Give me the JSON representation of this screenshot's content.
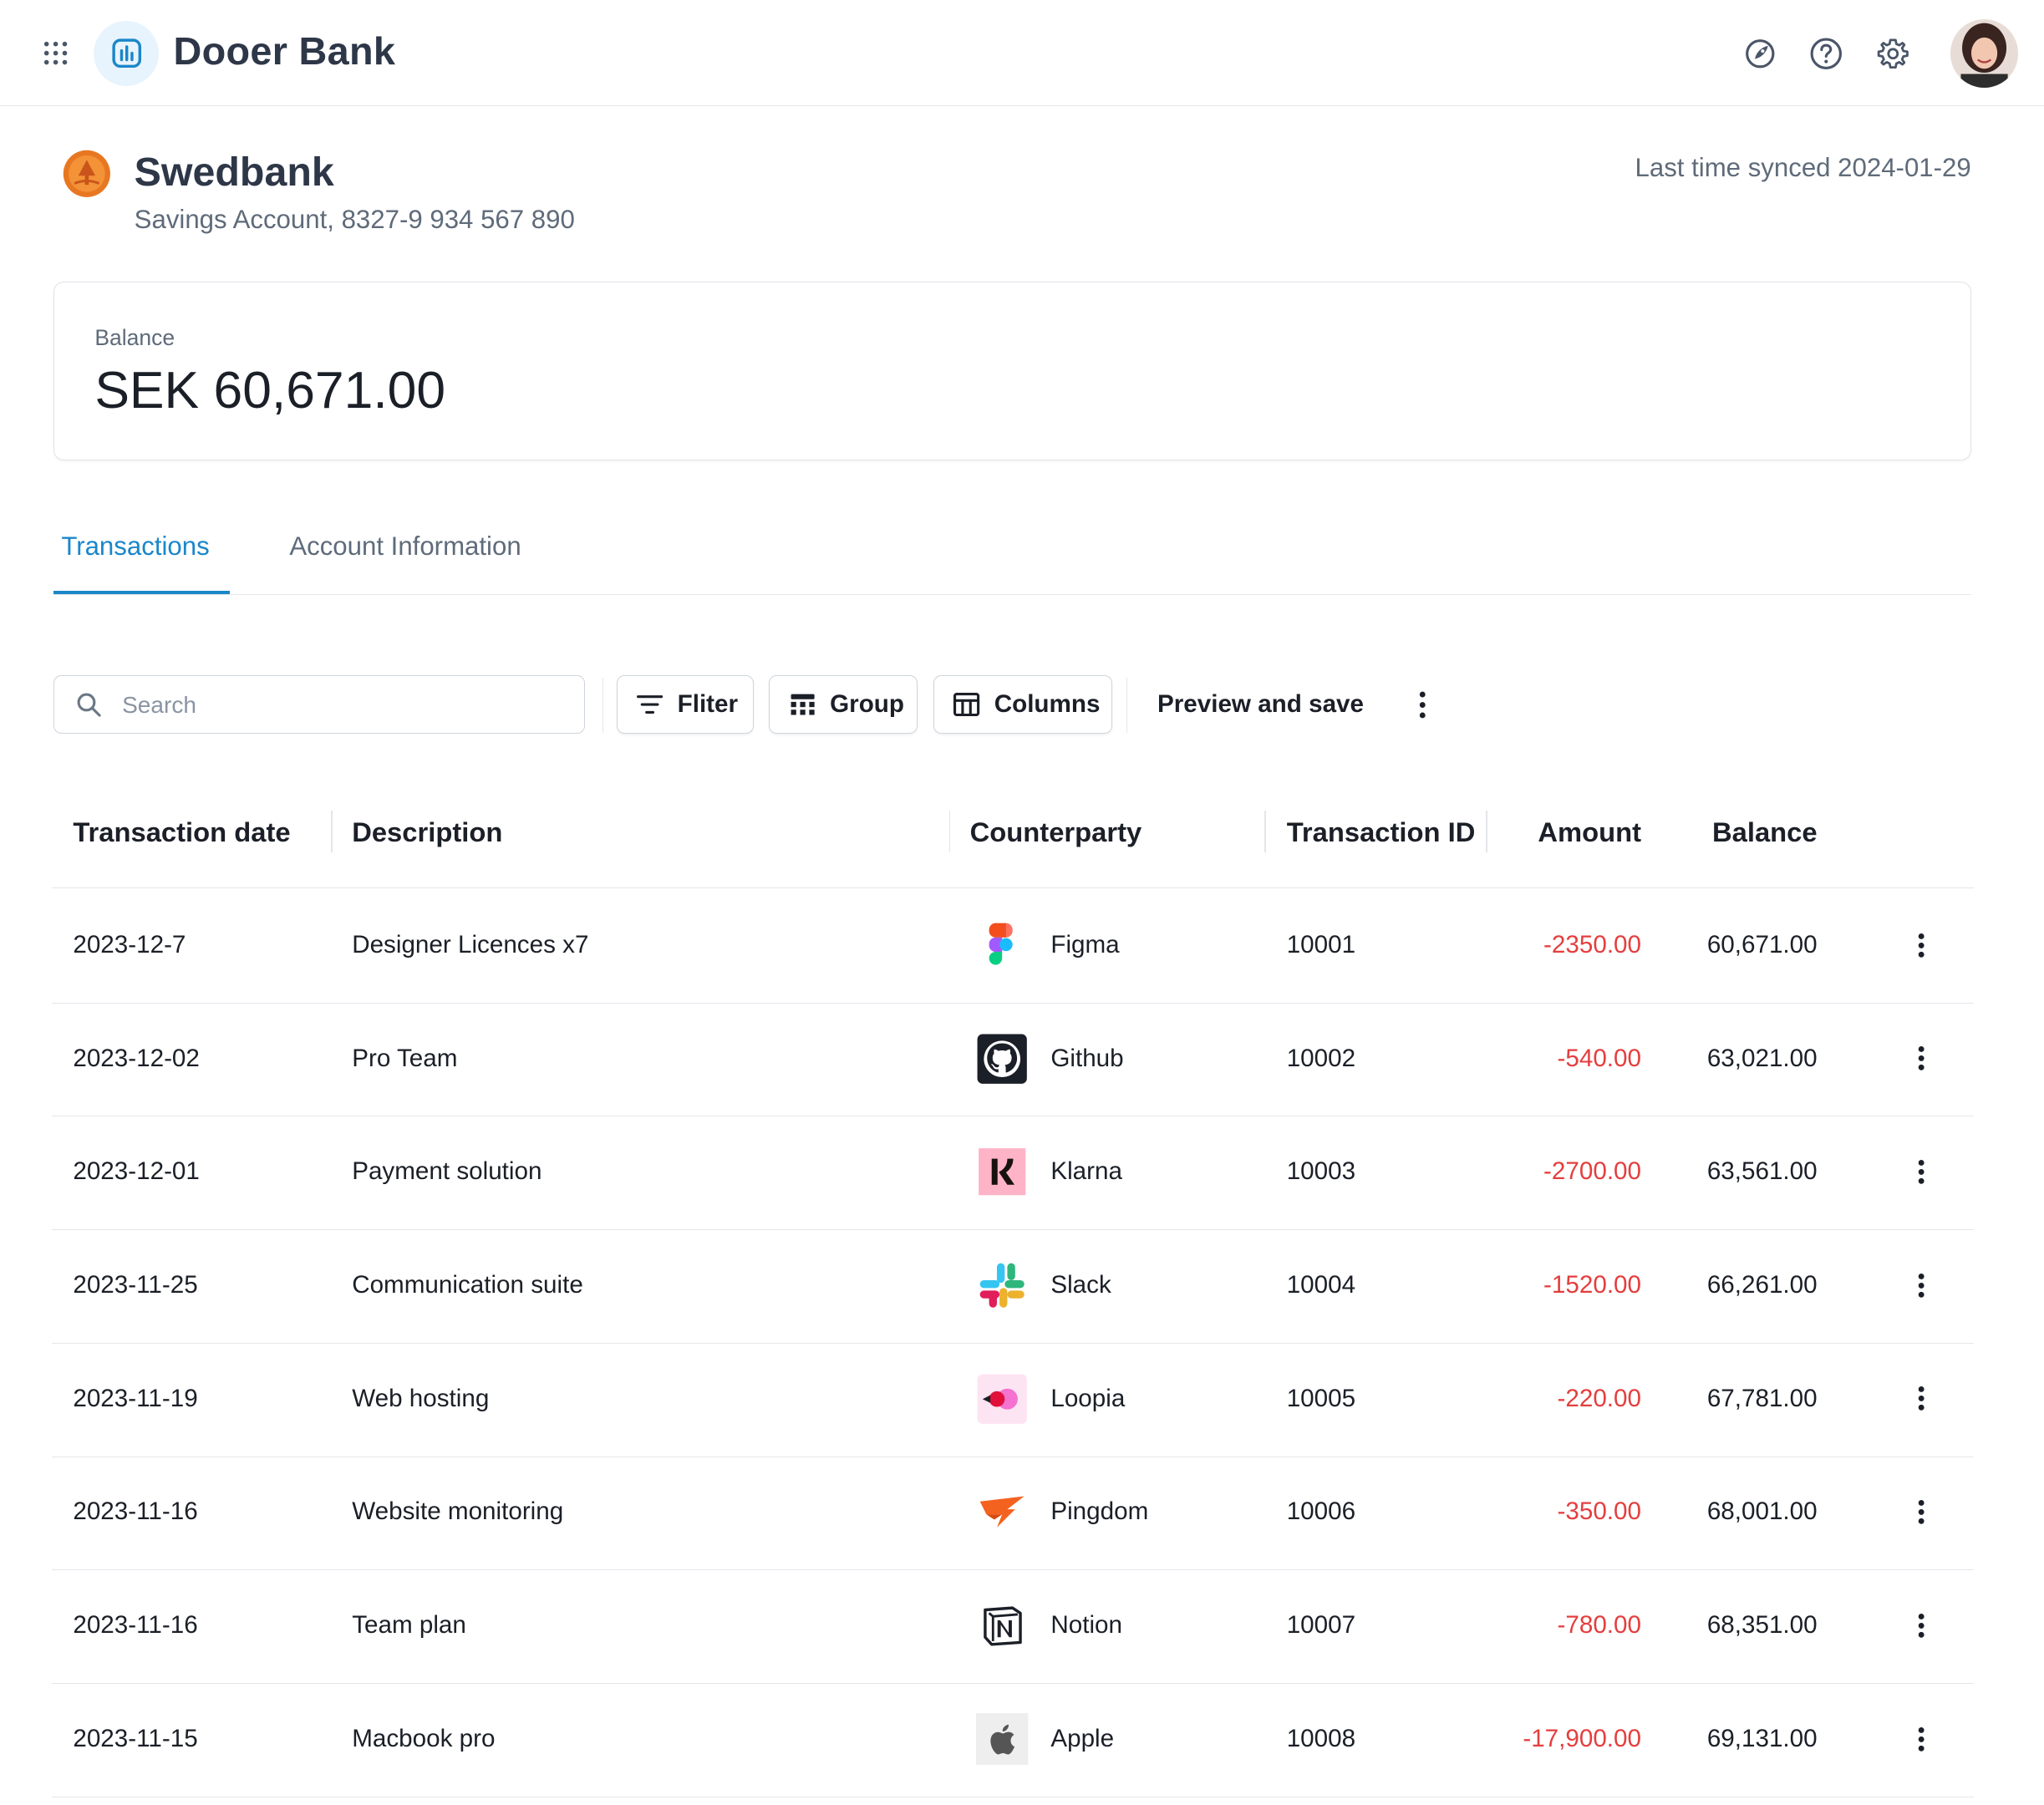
{
  "app": {
    "brand": "Dooer Bank",
    "icons": [
      "apps-grid-icon",
      "rocket-icon",
      "help-icon",
      "settings-icon",
      "user-avatar"
    ]
  },
  "account": {
    "bank_name": "Swedbank",
    "subtitle": "Savings Account, 8327-9 934 567 890",
    "sync_text": "Last time synced 2024-01-29"
  },
  "balance": {
    "label": "Balance",
    "value": "SEK 60,671.00"
  },
  "tabs": [
    {
      "label": "Transactions",
      "active": true
    },
    {
      "label": "Account Information",
      "active": false
    }
  ],
  "toolbar": {
    "search_placeholder": "Search",
    "filter_label": "Fliter",
    "group_label": "Group",
    "columns_label": "Columns",
    "preview_label": "Preview and save"
  },
  "table": {
    "columns": [
      "Transaction date",
      "Description",
      "Counterparty",
      "Transaction ID",
      "Amount",
      "Balance"
    ],
    "rows": [
      {
        "date": "2023-12-7",
        "description": "Designer Licences x7",
        "counterparty": "Figma",
        "id": "10001",
        "amount": "-2350.00",
        "balance": "60,671.00",
        "logo": "figma-icon"
      },
      {
        "date": "2023-12-02",
        "description": "Pro Team",
        "counterparty": "Github",
        "id": "10002",
        "amount": "-540.00",
        "balance": "63,021.00",
        "logo": "github-icon"
      },
      {
        "date": "2023-12-01",
        "description": "Payment solution",
        "counterparty": "Klarna",
        "id": "10003",
        "amount": "-2700.00",
        "balance": "63,561.00",
        "logo": "klarna-icon"
      },
      {
        "date": "2023-11-25",
        "description": "Communication suite",
        "counterparty": "Slack",
        "id": "10004",
        "amount": "-1520.00",
        "balance": "66,261.00",
        "logo": "slack-icon"
      },
      {
        "date": "2023-11-19",
        "description": "Web hosting",
        "counterparty": "Loopia",
        "id": "10005",
        "amount": "-220.00",
        "balance": "67,781.00",
        "logo": "loopia-icon"
      },
      {
        "date": "2023-11-16",
        "description": "Website monitoring",
        "counterparty": "Pingdom",
        "id": "10006",
        "amount": "-350.00",
        "balance": "68,001.00",
        "logo": "pingdom-icon"
      },
      {
        "date": "2023-11-16",
        "description": "Team plan",
        "counterparty": "Notion",
        "id": "10007",
        "amount": "-780.00",
        "balance": "68,351.00",
        "logo": "notion-icon"
      },
      {
        "date": "2023-11-15",
        "description": "Macbook pro",
        "counterparty": "Apple",
        "id": "10008",
        "amount": "-17,900.00",
        "balance": "69,131.00",
        "logo": "apple-icon"
      }
    ]
  },
  "colors": {
    "accent": "#1b87c9",
    "negative_amount": "#e53e3e",
    "heading": "#2d3748",
    "muted": "#5f6b7a"
  }
}
